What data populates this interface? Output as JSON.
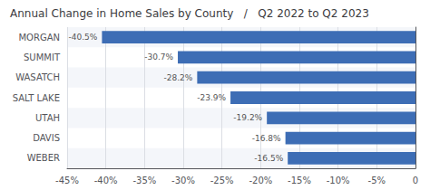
{
  "chart_data": {
    "type": "bar",
    "orientation": "horizontal",
    "title": "Annual Change in Home Sales by County   /   Q2 2022 to Q2 2023",
    "categories": [
      "WEBER",
      "DAVIS",
      "UTAH",
      "SALT LAKE",
      "WASATCH",
      "SUMMIT",
      "MORGAN"
    ],
    "values": [
      -16.5,
      -16.8,
      -19.2,
      -23.9,
      -28.2,
      -30.7,
      -40.5
    ],
    "value_labels": [
      "-16.5%",
      "-16.8%",
      "-19.2%",
      "-23.9%",
      "-28.2%",
      "-30.7%",
      "-40.5%"
    ],
    "data_labels": true,
    "color": "#3d6db5",
    "xlim": [
      -45,
      0
    ],
    "xticks": [
      {
        "value": -45,
        "label": "-45%"
      },
      {
        "value": -40,
        "label": "-40%"
      },
      {
        "value": -35,
        "label": "-35%"
      },
      {
        "value": -30,
        "label": "-30%"
      },
      {
        "value": -25,
        "label": "-25%"
      },
      {
        "value": -20,
        "label": "-20%"
      },
      {
        "value": -15,
        "label": "-15%"
      },
      {
        "value": -10,
        "label": "-10%"
      },
      {
        "value": -5,
        "label": "-5%"
      },
      0
    ],
    "grid": true
  }
}
